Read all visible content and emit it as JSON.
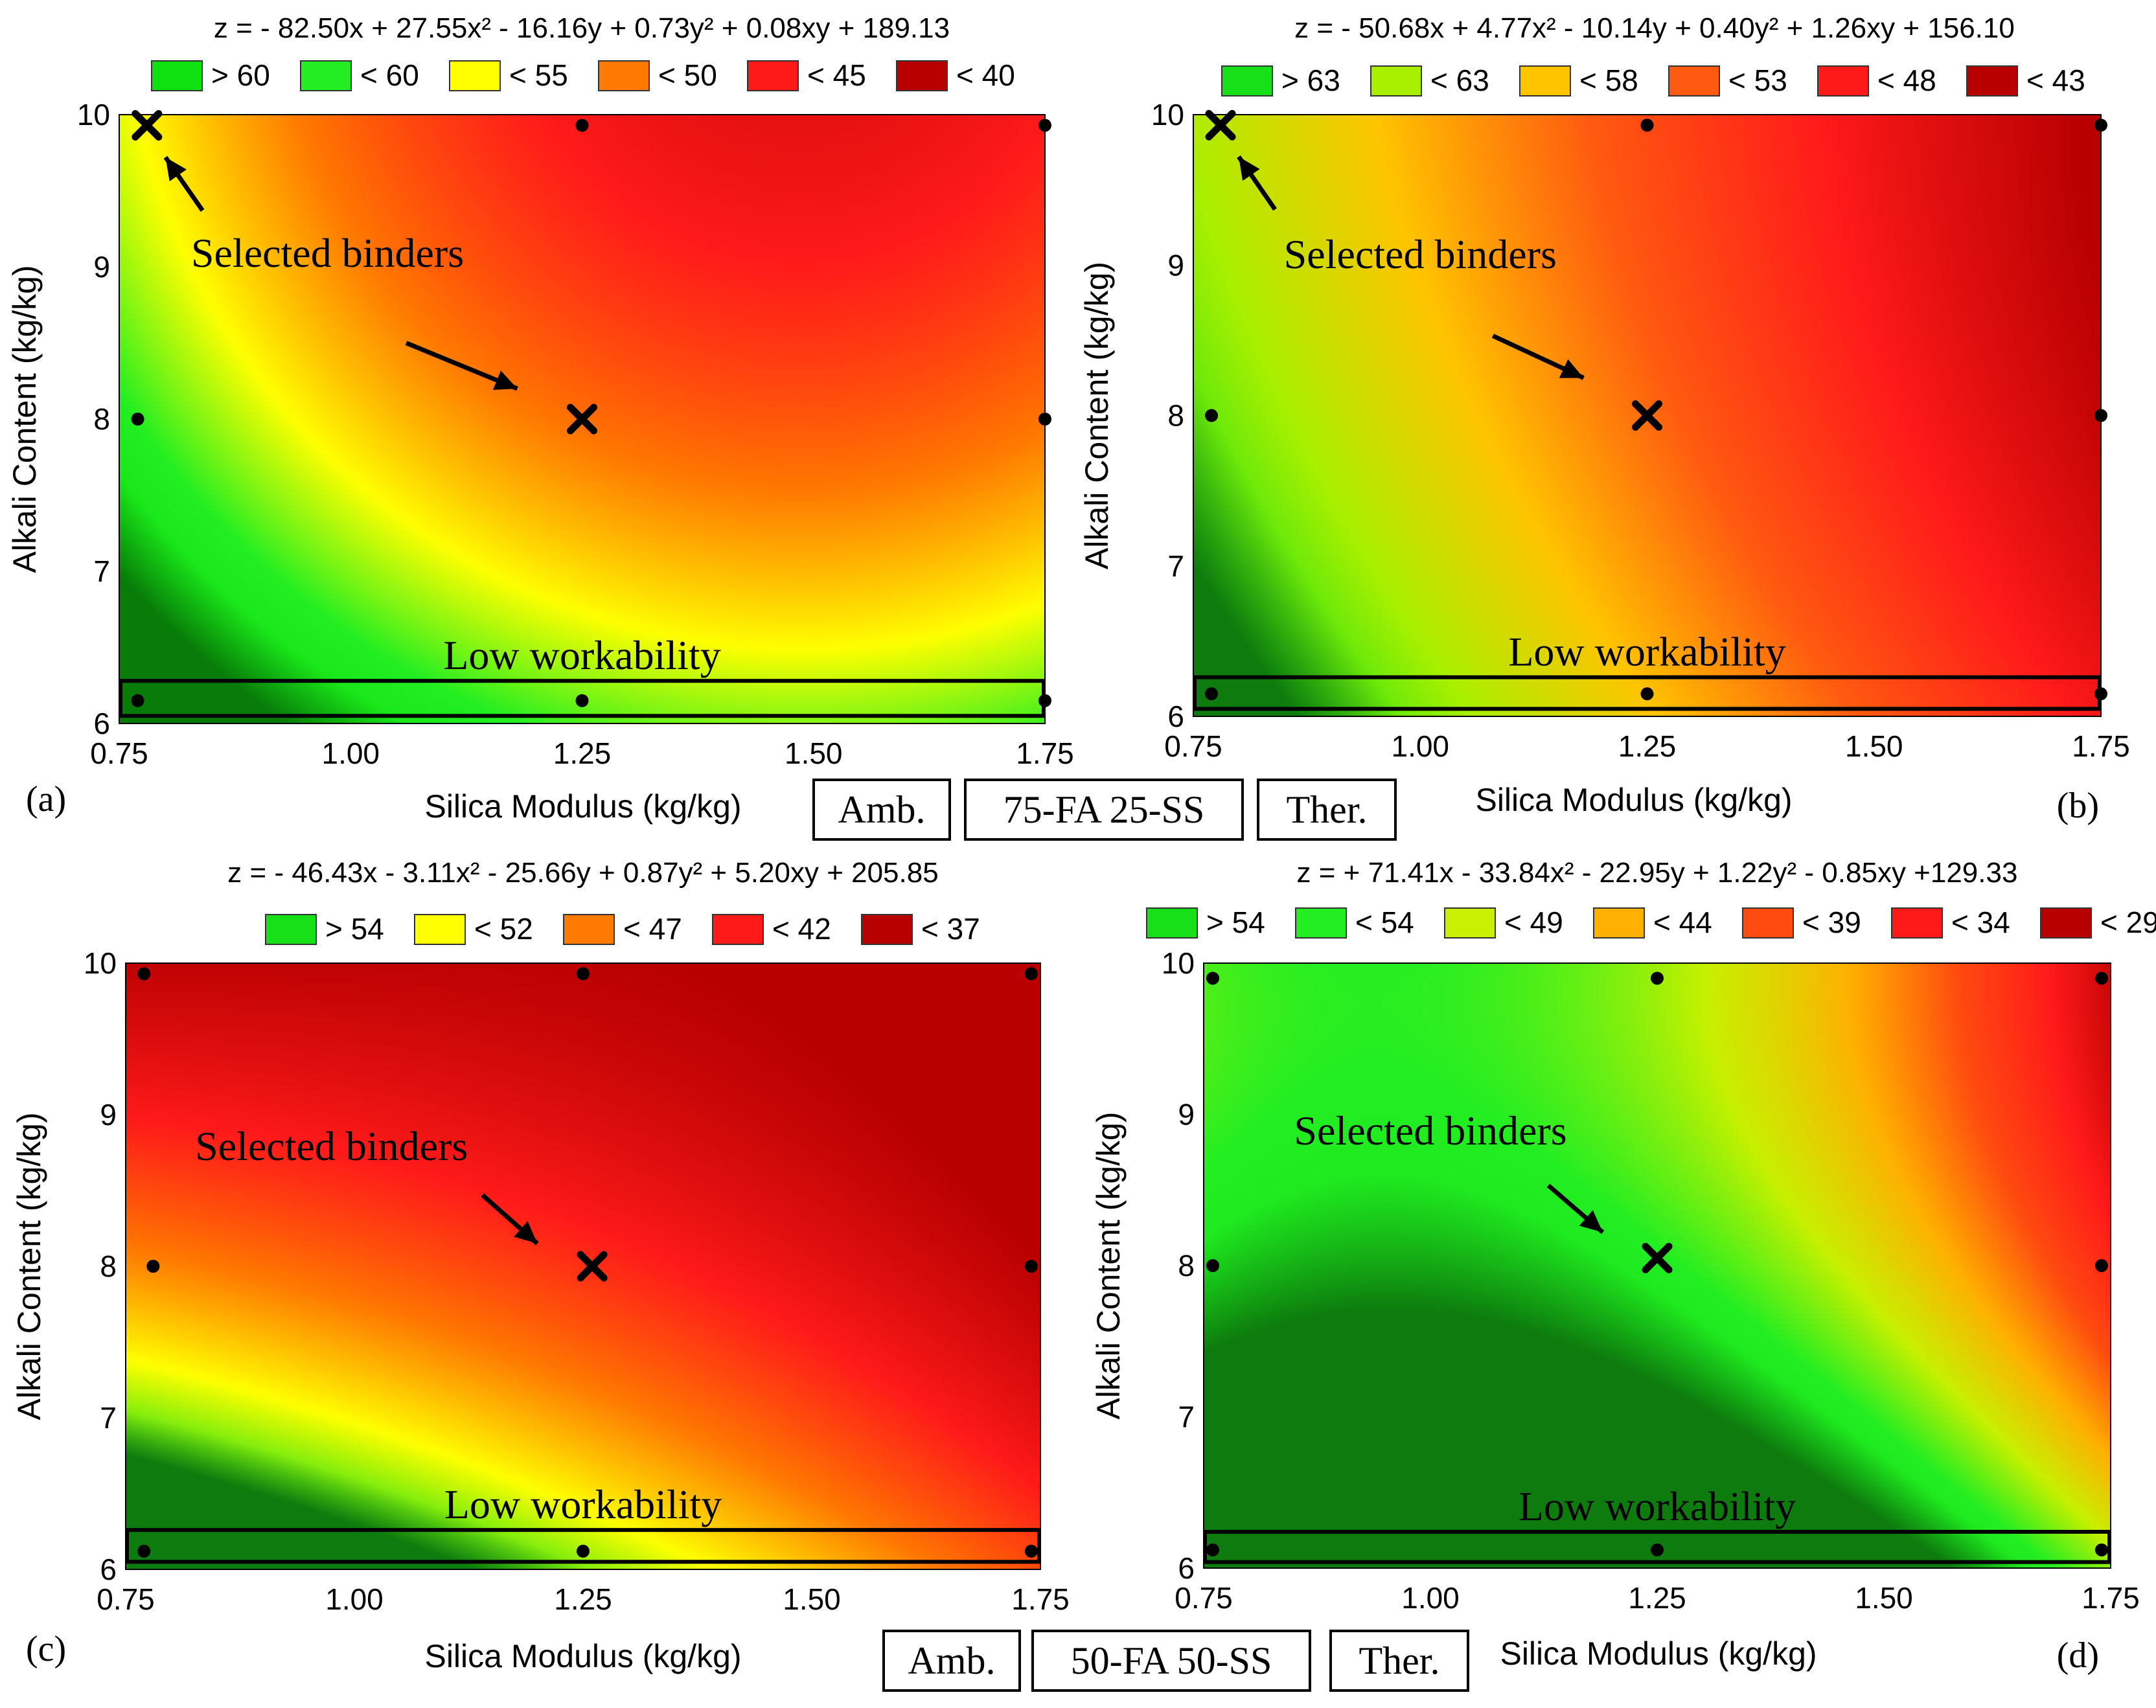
{
  "chart_data": [
    {
      "type": "heatmap",
      "panel_label": "(a)",
      "equation": "z = - 82.50x + 27.55x² - 16.16y + 0.73y² + 0.08xy + 189.13",
      "coef": {
        "x": -82.5,
        "x2": 27.55,
        "y": -16.16,
        "y2": 0.73,
        "xy": 0.08,
        "c": 189.13
      },
      "xlabel": "Silica Modulus (kg/kg)",
      "ylabel": "Alkali Content (kg/kg)",
      "xlim": [
        0.75,
        1.75
      ],
      "ylim": [
        6,
        10
      ],
      "xticks": [
        "0.75",
        "1.00",
        "1.25",
        "1.50",
        "1.75"
      ],
      "yticks": [
        "6",
        "7",
        "8",
        "9",
        "10"
      ],
      "legend": [
        {
          "label": "> 60",
          "color": "#0fe00f"
        },
        {
          "label": "< 60",
          "color": "#22ee22"
        },
        {
          "label": "< 55",
          "color": "#ffff00"
        },
        {
          "label": "< 50",
          "color": "#ff7a00"
        },
        {
          "label": "< 45",
          "color": "#ff1a1a"
        },
        {
          "label": "< 40",
          "color": "#b80000"
        }
      ],
      "color_range": [
        36,
        66
      ],
      "design_points": [
        [
          0.77,
          6.15
        ],
        [
          1.25,
          6.15
        ],
        [
          1.75,
          6.15
        ],
        [
          0.77,
          8
        ],
        [
          1.75,
          8
        ],
        [
          1.25,
          9.93
        ],
        [
          1.75,
          9.93
        ]
      ],
      "selected": [
        [
          0.78,
          9.93
        ],
        [
          1.25,
          8
        ]
      ],
      "annotations": {
        "selected": "Selected binders",
        "low": "Low workability"
      },
      "low_workability_band": [
        6.05,
        6.28
      ],
      "arrows": [
        {
          "from": [
            0.84,
            9.37
          ],
          "to": [
            0.8,
            9.72
          ]
        },
        {
          "from": [
            1.06,
            8.5
          ],
          "to": [
            1.18,
            8.2
          ]
        }
      ]
    },
    {
      "type": "heatmap",
      "panel_label": "(b)",
      "equation": "z = - 50.68x + 4.77x² - 10.14y + 0.40y² + 1.26xy + 156.10",
      "coef": {
        "x": -50.68,
        "x2": 4.77,
        "y": -10.14,
        "y2": 0.4,
        "xy": 1.26,
        "c": 156.1
      },
      "xlabel": "Silica Modulus (kg/kg)",
      "ylabel": "Alkali Content (kg/kg)",
      "xlim": [
        0.75,
        1.75
      ],
      "ylim": [
        6,
        10
      ],
      "xticks": [
        "0.75",
        "1.00",
        "1.25",
        "1.50",
        "1.75"
      ],
      "yticks": [
        "6",
        "7",
        "8",
        "9",
        "10"
      ],
      "legend": [
        {
          "label": "> 63",
          "color": "#18e018"
        },
        {
          "label": "< 63",
          "color": "#a8f000"
        },
        {
          "label": "< 58",
          "color": "#ffc400"
        },
        {
          "label": "< 53",
          "color": "#ff5a10"
        },
        {
          "label": "< 48",
          "color": "#ff1a1a"
        },
        {
          "label": "< 43",
          "color": "#b80000"
        }
      ],
      "color_range": [
        43,
        76
      ],
      "design_points": [
        [
          0.77,
          6.15
        ],
        [
          1.25,
          6.15
        ],
        [
          1.75,
          6.15
        ],
        [
          0.77,
          8
        ],
        [
          1.75,
          8
        ],
        [
          1.25,
          9.93
        ],
        [
          1.75,
          9.93
        ]
      ],
      "selected": [
        [
          0.78,
          9.93
        ],
        [
          1.25,
          8
        ]
      ],
      "annotations": {
        "selected": "Selected binders",
        "low": "Low workability"
      },
      "low_workability_band": [
        6.05,
        6.26
      ],
      "arrows": [
        {
          "from": [
            0.84,
            9.37
          ],
          "to": [
            0.8,
            9.72
          ]
        },
        {
          "from": [
            1.08,
            8.53
          ],
          "to": [
            1.18,
            8.25
          ]
        }
      ]
    },
    {
      "type": "heatmap",
      "panel_label": "(c)",
      "equation": "z = - 46.43x - 3.11x² - 25.66y + 0.87y² + 5.20xy + 205.85",
      "coef": {
        "x": -46.43,
        "x2": -3.11,
        "y": -25.66,
        "y2": 0.87,
        "xy": 5.2,
        "c": 205.85
      },
      "xlabel": "Silica Modulus (kg/kg)",
      "ylabel": "Alkali Content (kg/kg)",
      "xlim": [
        0.75,
        1.75
      ],
      "ylim": [
        6,
        10
      ],
      "xticks": [
        "0.75",
        "1.00",
        "1.25",
        "1.50",
        "1.75"
      ],
      "yticks": [
        "6",
        "7",
        "8",
        "9",
        "10"
      ],
      "legend": [
        {
          "label": "> 54",
          "color": "#18e018"
        },
        {
          "label": "< 52",
          "color": "#ffff00"
        },
        {
          "label": "< 47",
          "color": "#ff7a00"
        },
        {
          "label": "< 42",
          "color": "#ff1a1a"
        },
        {
          "label": "< 37",
          "color": "#b80000"
        }
      ],
      "color_range": [
        38,
        62
      ],
      "design_points": [
        [
          0.77,
          6.12
        ],
        [
          1.25,
          6.12
        ],
        [
          1.74,
          6.12
        ],
        [
          0.78,
          8
        ],
        [
          1.74,
          8
        ],
        [
          0.77,
          9.93
        ],
        [
          1.25,
          9.93
        ],
        [
          1.74,
          9.93
        ]
      ],
      "selected": [
        [
          1.26,
          8
        ]
      ],
      "annotations": {
        "selected": "Selected binders",
        "low": "Low workability"
      },
      "low_workability_band": [
        6.05,
        6.26
      ],
      "arrows": [
        {
          "from": [
            1.14,
            8.47
          ],
          "to": [
            1.2,
            8.15
          ]
        }
      ]
    },
    {
      "type": "heatmap",
      "panel_label": "(d)",
      "equation": "z = + 71.41x - 33.84x² - 22.95y + 1.22y² - 0.85xy +129.33",
      "coef": {
        "x": 71.41,
        "x2": -33.84,
        "y": -22.95,
        "y2": 1.22,
        "xy": -0.85,
        "c": 129.33
      },
      "xlabel": "Silica Modulus (kg/kg)",
      "ylabel": "Alkali Content (kg/kg)",
      "xlim": [
        0.75,
        1.75
      ],
      "ylim": [
        6,
        10
      ],
      "xticks": [
        "0.75",
        "1.00",
        "1.25",
        "1.50",
        "1.75"
      ],
      "yticks": [
        "6",
        "7",
        "8",
        "9",
        "10"
      ],
      "legend": [
        {
          "label": "> 54",
          "color": "#18e018"
        },
        {
          "label": "< 54",
          "color": "#22ee22"
        },
        {
          "label": "< 49",
          "color": "#c8f000"
        },
        {
          "label": "< 44",
          "color": "#ffb000"
        },
        {
          "label": "< 39",
          "color": "#ff4a10"
        },
        {
          "label": "< 34",
          "color": "#ff1a1a"
        },
        {
          "label": "< 29",
          "color": "#b80000"
        }
      ],
      "color_range": [
        27,
        56
      ],
      "design_points": [
        [
          0.76,
          6.12
        ],
        [
          1.25,
          6.12
        ],
        [
          1.74,
          6.12
        ],
        [
          0.76,
          8
        ],
        [
          1.74,
          8
        ],
        [
          0.76,
          9.9
        ],
        [
          1.25,
          9.9
        ],
        [
          1.74,
          9.9
        ]
      ],
      "selected": [
        [
          1.25,
          8.05
        ]
      ],
      "annotations": {
        "selected": "Selected binders",
        "low": "Low workability"
      },
      "low_workability_band": [
        6.04,
        6.24
      ],
      "arrows": [
        {
          "from": [
            1.13,
            8.53
          ],
          "to": [
            1.19,
            8.22
          ]
        }
      ]
    }
  ],
  "captions": {
    "top": [
      "Amb.",
      "75-FA 25-SS",
      "Ther."
    ],
    "bottom": [
      "Amb.",
      "50-FA 50-SS",
      "Ther."
    ]
  }
}
